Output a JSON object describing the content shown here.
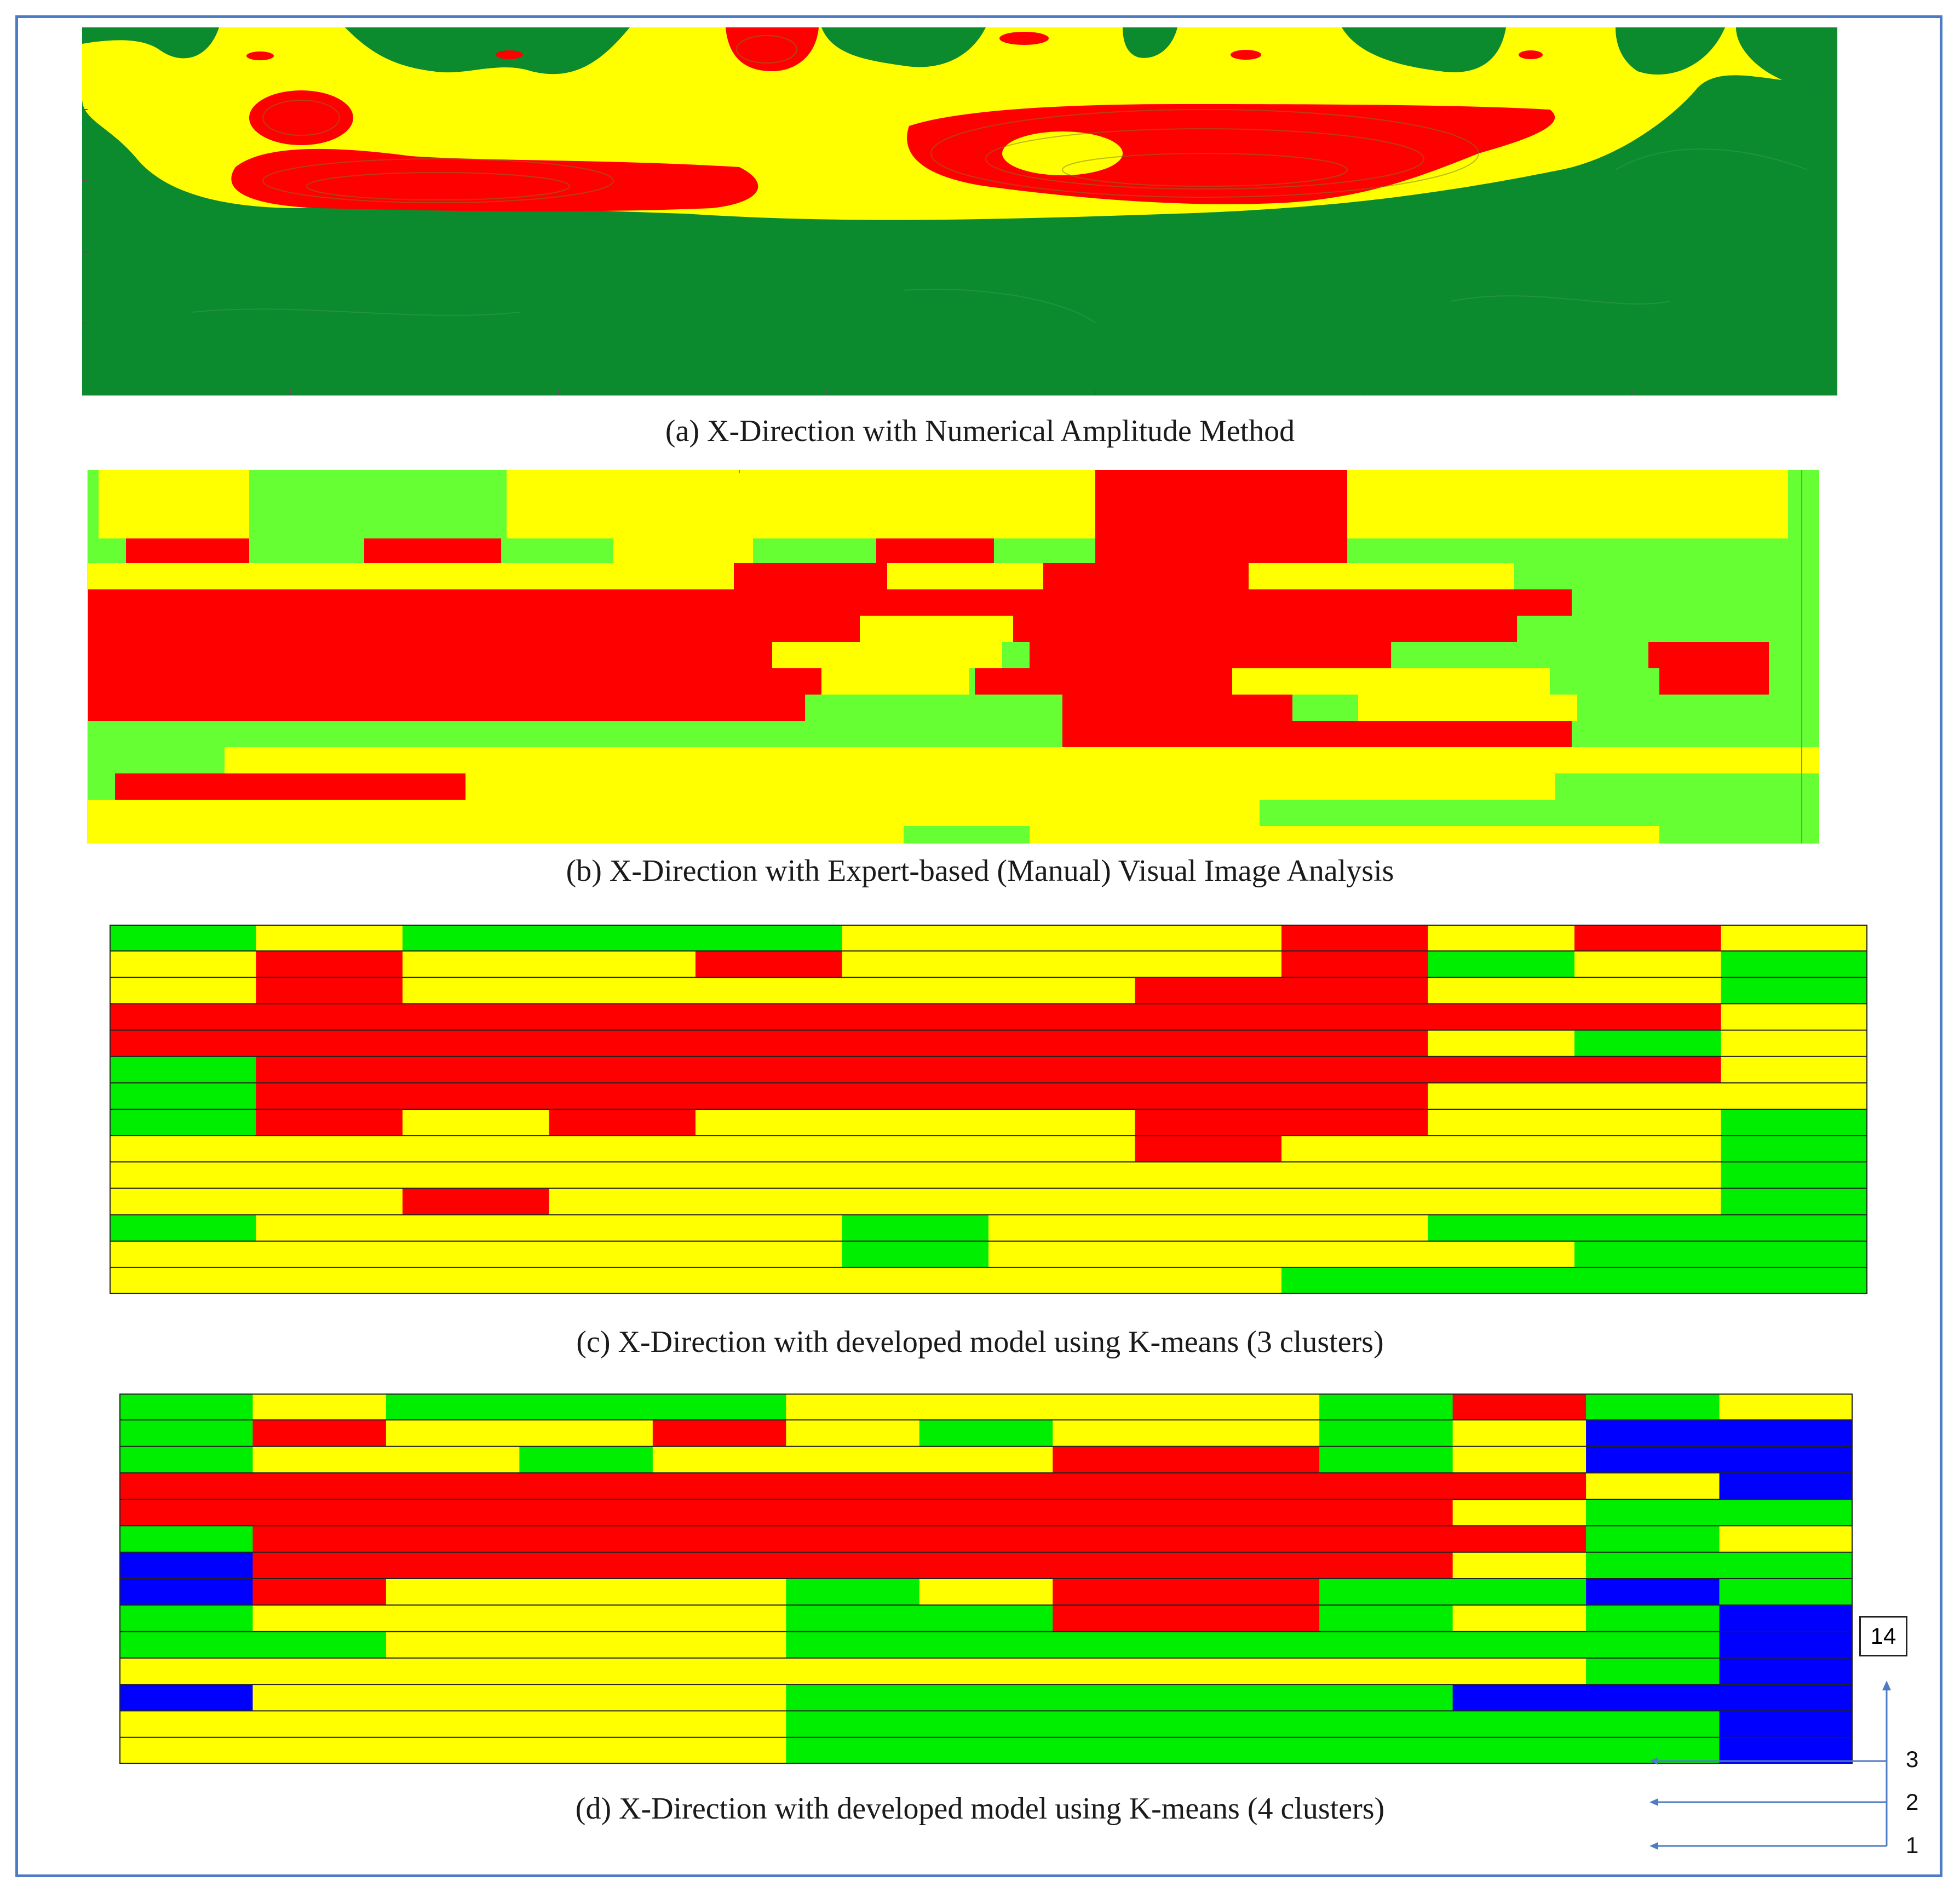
{
  "captions": {
    "a": "(a) X-Direction with Numerical Amplitude Method",
    "b": "(b) X-Direction with Expert-based (Manual) Visual Image Analysis",
    "c": "(c) X-Direction with developed model using K-means (3 clusters)",
    "d": "(d) X-Direction with developed model using K-means (4 clusters)"
  },
  "legend": {
    "top_row": "14",
    "row_3": "3",
    "row_2": "2",
    "row_1": "1"
  },
  "colors": {
    "a_green": "#0b8a2e",
    "a_yellow": "#ffff00",
    "a_red": "#ff0000",
    "b_green": "#66ff33",
    "yellow": "#ffff00",
    "red": "#ff0000",
    "green": "#00ee00",
    "blue": "#0000ff",
    "frame": "#4f7bc2"
  },
  "clusters_c": {
    "columns": 12,
    "column_bounds": [
      0,
      0.07,
      0.13,
      0.234,
      0.33,
      0.413,
      0.596,
      0.68,
      0.765,
      0.84,
      0.914,
      0.918,
      1.0
    ],
    "rows_top_to_bottom": [
      "GYGGGYYYRYRY",
      "YRYYRYYYRGYG",
      "YRYYYYYRRYYG",
      "RRRRRRRRRRRY",
      "RRRRRRRRRYGY",
      "GRRRRRRRRRRY",
      "GRRRRRRRRYYY",
      "GRYRYYYRRYYG",
      "YYYYYYYRYYYG",
      "YYYYYYYYYYYG",
      "YYRYYYYYYYYG",
      "GYYYYGYYYGGG",
      "YYYYYGYYYYGG",
      "YYYYYYYYGGGG"
    ]
  },
  "clusters_d": {
    "rows_top_to_bottom": [
      "GYGGGYYYYGRGY",
      "GRYYRYGYYGYBB",
      "GYYGYYYRRGYBB",
      "RRRRRRRRRRRYB",
      "RRRRRRRRRRYGG",
      "GRRRRRRRRRRGY",
      "BRRRRRRRRRYGG",
      "BRYYYGYRRGGBG",
      "GYYYYGGRRGYGB",
      "GGYYYGGGGGGGB",
      "YYYYYYYYYYYGB",
      "BYYYYGGGGGBBB",
      "YYYYYGGGGGGGB",
      "YYYYYGGGGGGGB"
    ]
  }
}
